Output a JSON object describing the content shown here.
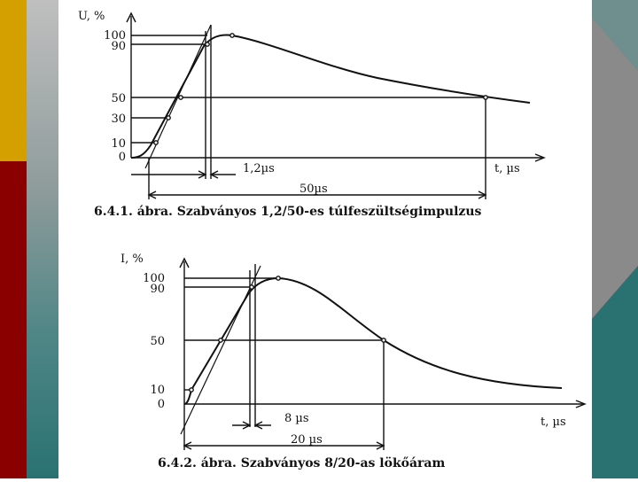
{
  "slide": {
    "colors": {
      "gold": "#d4a000",
      "red": "#8a0000",
      "teal": "#2a7272",
      "grey": "#bfbfbf"
    }
  },
  "figure1": {
    "caption": "6.4.1. ábra. Szabványos 1,2/50-es túlfeszültségimpulzus",
    "y_axis_label": "U, %",
    "x_axis_label": "t, µs",
    "y_ticks": [
      "100",
      "90",
      "50",
      "30",
      "10",
      "0"
    ],
    "front_time_label": "1,2µs",
    "half_time_label": "50µs"
  },
  "figure2": {
    "caption": "6.4.2. ábra. Szabványos 8/20-as lökőáram",
    "y_axis_label": "I, %",
    "x_axis_label": "t, µs",
    "y_ticks": [
      "100",
      "90",
      "50",
      "10",
      "0"
    ],
    "front_time_label": "8 µs",
    "half_time_label": "20 µs"
  }
}
